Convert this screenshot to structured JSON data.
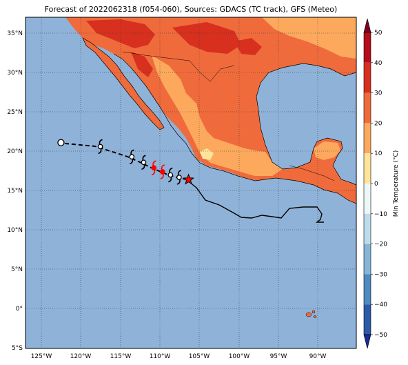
{
  "title": "Forecast of 2022062318 (f054-060), Sources: GDACS (TC track), GFS (Meteo)",
  "lat_labels": [
    "35°N",
    "30°N",
    "25°N",
    "20°N",
    "15°N",
    "10°N",
    "5°N",
    "0°",
    "5°S"
  ],
  "lon_labels": [
    "125°W",
    "120°W",
    "115°W",
    "110°W",
    "105°W",
    "100°W",
    "95°W",
    "90°W"
  ],
  "colorbar": {
    "label": "Min Temperature (°C)",
    "ticks": [
      "50",
      "40",
      "30",
      "20",
      "10",
      "0",
      "−10",
      "−20",
      "−30",
      "−40",
      "−50"
    ],
    "colors": [
      "#7f0021",
      "#b50d1c",
      "#d7301f",
      "#ef6b3c",
      "#fca95e",
      "#fee39b",
      "#eef7f7",
      "#bcdceb",
      "#86b5d6",
      "#4f8ac1",
      "#2d5aa8",
      "#1d2a8f"
    ]
  },
  "colors": {
    "ocean": "#8fb2d8",
    "land_warm": "#ef6b3c",
    "land_mild": "#fca95e",
    "land_hot": "#d7301f",
    "land_cool": "#fee39b",
    "track_past": "#000000",
    "storm_highlight": "#ff0000"
  },
  "track": {
    "current_marker": "star",
    "forecast_points": [
      {
        "lon": -123.0,
        "lat": 21.1,
        "symbol": "circle"
      },
      {
        "lon": -118.0,
        "lat": 20.6,
        "symbol": "cyclone"
      },
      {
        "lon": -114.0,
        "lat": 19.3,
        "symbol": "cyclone"
      },
      {
        "lon": -112.5,
        "lat": 18.6,
        "symbol": "cyclone"
      },
      {
        "lon": -111.2,
        "lat": 17.9,
        "symbol": "cyclone-red"
      },
      {
        "lon": -110.1,
        "lat": 17.4,
        "symbol": "cyclone-red"
      },
      {
        "lon": -109.1,
        "lat": 17.0,
        "symbol": "cyclone"
      },
      {
        "lon": -108.0,
        "lat": 16.7,
        "symbol": "cyclone"
      },
      {
        "lon": -106.8,
        "lat": 16.4,
        "symbol": "star"
      }
    ]
  }
}
